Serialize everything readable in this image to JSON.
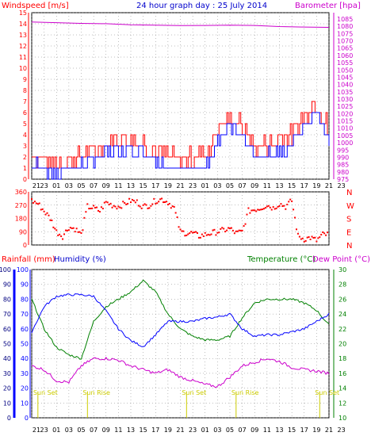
{
  "title": "24 hour graph day : 25 July 2014",
  "colors": {
    "red": "#ff0000",
    "blue": "#0000ff",
    "magenta": "#cc00cc",
    "green": "#008000",
    "yellow": "#cccc00",
    "grid": "#808080"
  },
  "x_hour_labels": [
    "21",
    "23",
    "01",
    "03",
    "05",
    "07",
    "09",
    "11",
    "13",
    "15",
    "17",
    "19",
    "21",
    "23",
    "01",
    "03",
    "05",
    "07",
    "09",
    "11",
    "13",
    "15",
    "17",
    "19",
    "21",
    "23"
  ],
  "panel1": {
    "left_label": "Windspeed [m/s]",
    "right_label": "Barometer [hpa]",
    "left_ticks": [
      "15",
      "14",
      "13",
      "12",
      "11",
      "10",
      "9",
      "8",
      "7",
      "6",
      "5",
      "4",
      "3",
      "2",
      "1",
      "0"
    ],
    "right_ticks": [
      "1085",
      "1080",
      "1075",
      "1070",
      "1065",
      "1060",
      "1055",
      "1050",
      "1045",
      "1040",
      "1035",
      "1030",
      "1025",
      "1020",
      "1015",
      "1010",
      "1005",
      "1000",
      "995",
      "990",
      "985",
      "980",
      "975"
    ]
  },
  "panel2": {
    "left_ticks": [
      "360",
      "270",
      "180",
      "90",
      "0"
    ],
    "right_ticks": [
      "N",
      "W",
      "S",
      "E",
      "N"
    ]
  },
  "panel3": {
    "rain_label": "Rainfall (mm)",
    "humidity_label": "Humidity (%)",
    "temp_label": "Temperature (°C)",
    "dew_label": "Dew Point (°C)",
    "rain_ticks": [
      "100",
      "90",
      "80",
      "70",
      "60",
      "50",
      "40",
      "30",
      "20",
      "10",
      "0"
    ],
    "humidity_ticks": [
      "100",
      "90",
      "80",
      "70",
      "60",
      "50",
      "40",
      "30",
      "20",
      "10",
      "0"
    ],
    "temp_ticks": [
      "30",
      "28",
      "26",
      "24",
      "22",
      "20",
      "18",
      "16",
      "14",
      "12",
      "10"
    ],
    "sun_labels": [
      {
        "text": "Sun Set",
        "hour": 21.0
      },
      {
        "text": "Sun Rise",
        "hour": 5.0
      },
      {
        "text": "Sun Set",
        "hour": 21.0
      },
      {
        "text": "Sun Rise",
        "hour": 5.0
      },
      {
        "text": "Sun Set",
        "hour": 21.0
      }
    ]
  },
  "chart_data": [
    {
      "type": "line",
      "title": "24 hour graph day : 25 July 2014",
      "series": [
        {
          "name": "Windspeed [m/s]",
          "axis": "left",
          "x": [
            0,
            2,
            4,
            6,
            8,
            10,
            12,
            14,
            16,
            18,
            20,
            22,
            24,
            26,
            28,
            30,
            32,
            34,
            36,
            38,
            40,
            42,
            44,
            46,
            48
          ],
          "values": [
            1.5,
            1.0,
            0.6,
            1.0,
            1.4,
            1.8,
            2.5,
            2.8,
            3.0,
            2.4,
            1.6,
            1.2,
            1.0,
            1.2,
            1.5,
            3.5,
            5.0,
            3.8,
            2.2,
            2.3,
            2.8,
            3.2,
            5.0,
            6.2,
            3.5
          ]
        },
        {
          "name": "Barometer [hpa]",
          "axis": "right",
          "x": [
            0,
            4,
            8,
            12,
            16,
            20,
            24,
            28,
            32,
            36,
            40,
            44,
            48
          ],
          "values": [
            1083,
            1082.5,
            1082,
            1081.8,
            1081,
            1080.8,
            1080.5,
            1080.6,
            1080.8,
            1080.6,
            1079.8,
            1079.5,
            1079.3
          ],
          "ylim": [
            975,
            1085
          ]
        }
      ],
      "ylim": [
        0,
        15
      ]
    },
    {
      "type": "scatter",
      "series": [
        {
          "name": "Wind direction",
          "x": [
            0,
            1,
            2,
            3,
            4,
            5,
            6,
            7,
            8,
            9,
            10,
            11,
            12,
            13,
            14,
            15,
            16,
            17,
            18,
            19,
            20,
            21,
            22,
            23,
            24,
            25,
            26,
            27,
            28,
            29,
            30,
            31,
            32,
            33,
            34,
            35,
            36,
            37,
            38,
            39,
            40,
            41,
            42,
            43,
            44,
            45,
            46,
            47
          ],
          "values": [
            300,
            280,
            230,
            180,
            90,
            60,
            120,
            110,
            70,
            260,
            250,
            230,
            290,
            270,
            260,
            280,
            300,
            290,
            260,
            270,
            300,
            310,
            290,
            250,
            90,
            80,
            80,
            60,
            70,
            80,
            90,
            100,
            110,
            80,
            90,
            230,
            240,
            250,
            270,
            250,
            280,
            260,
            300,
            60,
            40,
            50,
            30,
            70
          ]
        }
      ],
      "ylim": [
        0,
        360
      ]
    },
    {
      "type": "line",
      "series": [
        {
          "name": "Humidity (%)",
          "axis": "left",
          "x": [
            0,
            2,
            4,
            6,
            8,
            10,
            12,
            14,
            16,
            18,
            20,
            22,
            24,
            26,
            28,
            30,
            32,
            34,
            36,
            38,
            40,
            42,
            44,
            46,
            48
          ],
          "values": [
            58,
            75,
            82,
            83,
            83,
            82,
            72,
            60,
            52,
            48,
            56,
            65,
            65,
            65,
            67,
            68,
            70,
            60,
            55,
            56,
            56,
            58,
            60,
            65,
            70
          ]
        },
        {
          "name": "Temperature (°C)",
          "axis": "right",
          "x": [
            0,
            2,
            4,
            6,
            8,
            10,
            12,
            14,
            16,
            18,
            20,
            22,
            24,
            26,
            28,
            30,
            32,
            34,
            36,
            38,
            40,
            42,
            44,
            46,
            48
          ],
          "values": [
            26,
            22,
            19.5,
            18.5,
            18,
            23,
            25,
            26,
            27,
            28.5,
            27,
            24,
            22,
            21,
            20.5,
            20.5,
            21,
            23.5,
            25.5,
            26,
            26,
            26,
            25.5,
            24.5,
            22.5
          ]
        },
        {
          "name": "Dew Point (°C)",
          "axis": "right",
          "x": [
            0,
            2,
            4,
            6,
            8,
            10,
            12,
            14,
            16,
            18,
            20,
            22,
            24,
            26,
            28,
            30,
            32,
            34,
            36,
            38,
            40,
            42,
            44,
            46,
            48
          ],
          "values": [
            17,
            16.5,
            15,
            14.8,
            17,
            18,
            18,
            17.8,
            17,
            16.5,
            16,
            16.5,
            15.5,
            15,
            14.5,
            14.2,
            15.5,
            17,
            17.5,
            18,
            17.6,
            16.8,
            16.5,
            16.3,
            16
          ]
        },
        {
          "name": "Rainfall (mm)",
          "axis": "left",
          "x": [
            0,
            48
          ],
          "values": [
            0,
            0
          ]
        }
      ],
      "ylim_humidity": [
        0,
        100
      ],
      "ylim_temp": [
        10,
        30
      ]
    }
  ]
}
